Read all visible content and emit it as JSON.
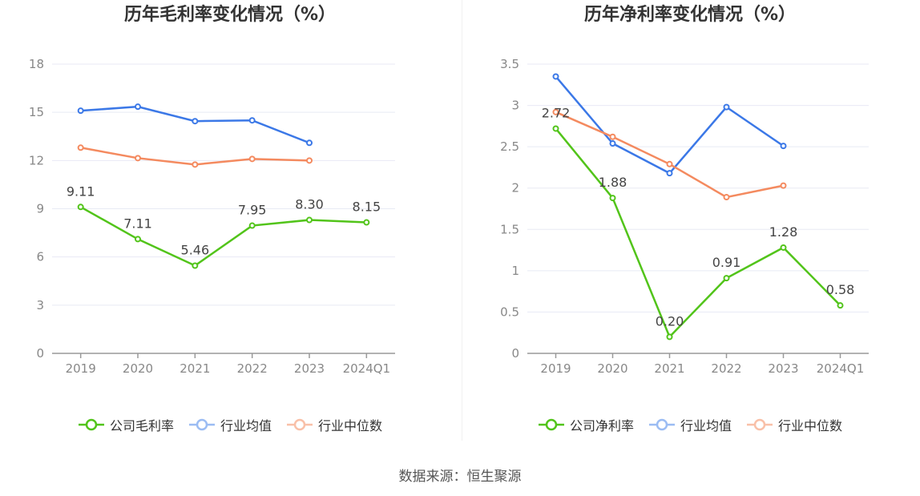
{
  "source_text": "数据来源：恒生聚源",
  "chart_data": [
    {
      "type": "line",
      "title": "历年毛利率变化情况（%）",
      "categories": [
        "2019",
        "2020",
        "2021",
        "2022",
        "2023",
        "2024Q1"
      ],
      "ylim": [
        0,
        18
      ],
      "yticks": [
        "0",
        "3",
        "6",
        "9",
        "12",
        "15",
        "18"
      ],
      "ytick_values": [
        0,
        3,
        6,
        9,
        12,
        15,
        18
      ],
      "grid": true,
      "legend_position": "bottom",
      "series": [
        {
          "name": "公司毛利率",
          "color": "#52c41a",
          "values": [
            9.11,
            7.11,
            5.46,
            7.95,
            8.3,
            8.15
          ],
          "labels": [
            "9.11",
            "7.11",
            "5.46",
            "7.95",
            "8.30",
            "8.15"
          ]
        },
        {
          "name": "行业均值",
          "color": "#3b78e7",
          "values": [
            15.1,
            15.35,
            14.45,
            14.5,
            13.1,
            null
          ]
        },
        {
          "name": "行业中位数",
          "color": "#f48a5f",
          "values": [
            12.8,
            12.15,
            11.75,
            12.1,
            12.0,
            null
          ]
        }
      ]
    },
    {
      "type": "line",
      "title": "历年净利率变化情况（%）",
      "categories": [
        "2019",
        "2020",
        "2021",
        "2022",
        "2023",
        "2024Q1"
      ],
      "ylim": [
        0,
        3.5
      ],
      "yticks": [
        "0",
        "0.5",
        "1",
        "1.5",
        "2",
        "2.5",
        "3",
        "3.5"
      ],
      "ytick_values": [
        0,
        0.5,
        1,
        1.5,
        2,
        2.5,
        3,
        3.5
      ],
      "grid": true,
      "legend_position": "bottom",
      "series": [
        {
          "name": "公司净利率",
          "color": "#52c41a",
          "values": [
            2.72,
            1.88,
            0.2,
            0.91,
            1.28,
            0.58
          ],
          "labels": [
            "2.72",
            "1.88",
            "0.20",
            "0.91",
            "1.28",
            "0.58"
          ]
        },
        {
          "name": "行业均值",
          "color": "#3b78e7",
          "values": [
            3.35,
            2.54,
            2.18,
            2.98,
            2.51,
            null
          ]
        },
        {
          "name": "行业中位数",
          "color": "#f48a5f",
          "values": [
            2.92,
            2.62,
            2.29,
            1.89,
            2.03,
            null
          ]
        }
      ]
    }
  ]
}
